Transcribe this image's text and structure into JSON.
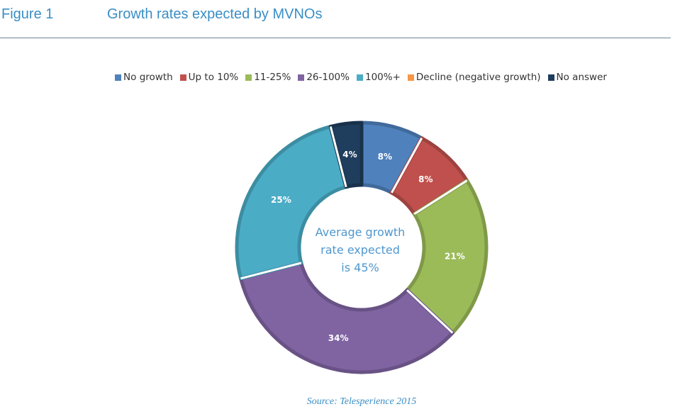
{
  "header": {
    "figure_number": "Figure 1",
    "title": "Growth rates expected by MVNOs"
  },
  "legend": {
    "items": [
      {
        "label": "No growth",
        "color": "#4f81bd"
      },
      {
        "label": "Up to 10%",
        "color": "#c0504d"
      },
      {
        "label": "11-25%",
        "color": "#9bbb59"
      },
      {
        "label": "26-100%",
        "color": "#8064a2"
      },
      {
        "label": "100%+",
        "color": "#4bacc6"
      },
      {
        "label": "Decline (negative growth)",
        "color": "#f79646"
      },
      {
        "label": "No answer",
        "color": "#1f3d5c"
      }
    ]
  },
  "chart_data": {
    "type": "pie",
    "variant": "donut",
    "legend_position": "top",
    "center_text": [
      "Average growth",
      "rate expected",
      "is 45%"
    ],
    "slices": [
      {
        "name": "No growth",
        "value": 8,
        "label": "8%",
        "color": "#4f81bd"
      },
      {
        "name": "Up to 10%",
        "value": 8,
        "label": "8%",
        "color": "#c0504d"
      },
      {
        "name": "11-25%",
        "value": 21,
        "label": "21%",
        "color": "#9bbb59"
      },
      {
        "name": "26-100%",
        "value": 34,
        "label": "34%",
        "color": "#8064a2"
      },
      {
        "name": "100%+",
        "value": 25,
        "label": "25%",
        "color": "#4bacc6"
      },
      {
        "name": "Decline (negative growth)",
        "value": 0,
        "label": "",
        "color": "#f79646"
      },
      {
        "name": "No answer",
        "value": 4,
        "label": "4%",
        "color": "#1f3d5c"
      }
    ]
  },
  "source": "Source: Telesperience 2015"
}
